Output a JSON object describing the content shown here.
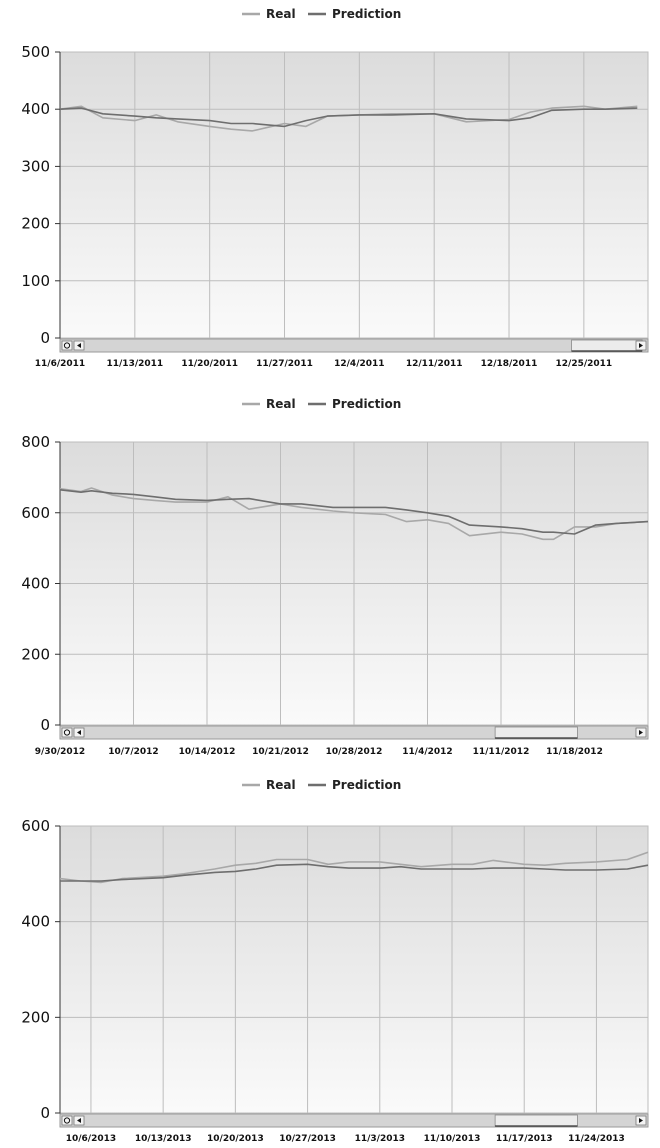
{
  "colors": {
    "real": "#a8a8a8",
    "prediction": "#6e6e6e",
    "plot_top": "#dcdcdc",
    "plot_bottom": "#fafafa",
    "grid": "#bdbdbd",
    "axis": "#333333",
    "scrollbar": "#d4d4d4"
  },
  "icons": {
    "zoom_reset": "magnifier-circle-icon",
    "scroll_left": "arrow-left-icon",
    "scroll_right": "arrow-right-icon"
  },
  "chart_data": [
    {
      "type": "line",
      "legend": [
        "Real",
        "Prediction"
      ],
      "legend_position": "top-center",
      "ylim": [
        0,
        500
      ],
      "yticks": [
        0,
        100,
        200,
        300,
        400,
        500
      ],
      "xticks": [
        "11/6/2011",
        "11/13/2011",
        "11/20/2011",
        "11/27/2011",
        "12/4/2011",
        "12/11/2011",
        "12/18/2011",
        "12/25/2011"
      ],
      "xlim": [
        "11/6/2011",
        "12/31/2011"
      ],
      "grid": true,
      "scroll_thumb": [
        0.87,
        0.99
      ],
      "series": [
        {
          "name": "Real",
          "points": [
            [
              "11/6/2011",
              400
            ],
            [
              "11/8/2011",
              405
            ],
            [
              "11/10/2011",
              385
            ],
            [
              "11/13/2011",
              380
            ],
            [
              "11/15/2011",
              390
            ],
            [
              "11/17/2011",
              378
            ],
            [
              "11/20/2011",
              370
            ],
            [
              "11/22/2011",
              365
            ],
            [
              "11/24/2011",
              362
            ],
            [
              "11/27/2011",
              375
            ],
            [
              "11/29/2011",
              370
            ],
            [
              "12/1/2011",
              388
            ],
            [
              "12/4/2011",
              390
            ],
            [
              "12/7/2011",
              392
            ],
            [
              "12/11/2011",
              392
            ],
            [
              "12/14/2011",
              378
            ],
            [
              "12/18/2011",
              382
            ],
            [
              "12/20/2011",
              395
            ],
            [
              "12/22/2011",
              402
            ],
            [
              "12/25/2011",
              405
            ],
            [
              "12/27/2011",
              400
            ],
            [
              "12/30/2011",
              405
            ]
          ]
        },
        {
          "name": "Prediction",
          "points": [
            [
              "11/6/2011",
              400
            ],
            [
              "11/8/2011",
              402
            ],
            [
              "11/10/2011",
              392
            ],
            [
              "11/13/2011",
              388
            ],
            [
              "11/15/2011",
              385
            ],
            [
              "11/17/2011",
              383
            ],
            [
              "11/20/2011",
              380
            ],
            [
              "11/22/2011",
              375
            ],
            [
              "11/24/2011",
              375
            ],
            [
              "11/27/2011",
              370
            ],
            [
              "11/29/2011",
              380
            ],
            [
              "12/1/2011",
              388
            ],
            [
              "12/4/2011",
              390
            ],
            [
              "12/7/2011",
              390
            ],
            [
              "12/11/2011",
              392
            ],
            [
              "12/14/2011",
              383
            ],
            [
              "12/18/2011",
              380
            ],
            [
              "12/20/2011",
              385
            ],
            [
              "12/22/2011",
              398
            ],
            [
              "12/25/2011",
              400
            ],
            [
              "12/27/2011",
              400
            ],
            [
              "12/30/2011",
              402
            ]
          ]
        }
      ]
    },
    {
      "type": "line",
      "legend": [
        "Real",
        "Prediction"
      ],
      "legend_position": "top-center",
      "ylim": [
        0,
        800
      ],
      "yticks": [
        0,
        200,
        400,
        600,
        800
      ],
      "xticks": [
        "9/30/2012",
        "10/7/2012",
        "10/14/2012",
        "10/21/2012",
        "10/28/2012",
        "11/4/2012",
        "11/11/2012",
        "11/18/2012"
      ],
      "xlim": [
        "9/30/2012",
        "11/25/2012"
      ],
      "grid": true,
      "scroll_thumb": [
        0.74,
        0.88
      ],
      "series": [
        {
          "name": "Real",
          "points": [
            [
              "9/30/2012",
              668
            ],
            [
              "10/2/2012",
              660
            ],
            [
              "10/3/2012",
              670
            ],
            [
              "10/5/2012",
              650
            ],
            [
              "10/7/2012",
              640
            ],
            [
              "10/9/2012",
              635
            ],
            [
              "10/11/2012",
              630
            ],
            [
              "10/14/2012",
              630
            ],
            [
              "10/16/2012",
              645
            ],
            [
              "10/18/2012",
              610
            ],
            [
              "10/21/2012",
              625
            ],
            [
              "10/23/2012",
              615
            ],
            [
              "10/26/2012",
              605
            ],
            [
              "10/28/2012",
              600
            ],
            [
              "10/31/2012",
              595
            ],
            [
              "11/2/2012",
              575
            ],
            [
              "11/4/2012",
              580
            ],
            [
              "11/6/2012",
              570
            ],
            [
              "11/8/2012",
              535
            ],
            [
              "11/11/2012",
              545
            ],
            [
              "11/13/2012",
              540
            ],
            [
              "11/15/2012",
              525
            ],
            [
              "11/16/2012",
              525
            ],
            [
              "11/18/2012",
              560
            ],
            [
              "11/20/2012",
              560
            ],
            [
              "11/22/2012",
              570
            ],
            [
              "11/25/2012",
              575
            ]
          ]
        },
        {
          "name": "Prediction",
          "points": [
            [
              "9/30/2012",
              665
            ],
            [
              "10/2/2012",
              658
            ],
            [
              "10/3/2012",
              662
            ],
            [
              "10/5/2012",
              655
            ],
            [
              "10/7/2012",
              652
            ],
            [
              "10/9/2012",
              645
            ],
            [
              "10/11/2012",
              638
            ],
            [
              "10/14/2012",
              635
            ],
            [
              "10/16/2012",
              638
            ],
            [
              "10/18/2012",
              640
            ],
            [
              "10/21/2012",
              625
            ],
            [
              "10/23/2012",
              625
            ],
            [
              "10/26/2012",
              615
            ],
            [
              "10/28/2012",
              615
            ],
            [
              "10/31/2012",
              615
            ],
            [
              "11/2/2012",
              608
            ],
            [
              "11/4/2012",
              600
            ],
            [
              "11/6/2012",
              590
            ],
            [
              "11/8/2012",
              565
            ],
            [
              "11/11/2012",
              560
            ],
            [
              "11/13/2012",
              555
            ],
            [
              "11/15/2012",
              545
            ],
            [
              "11/16/2012",
              545
            ],
            [
              "11/18/2012",
              540
            ],
            [
              "11/20/2012",
              565
            ],
            [
              "11/22/2012",
              570
            ],
            [
              "11/25/2012",
              575
            ]
          ]
        }
      ]
    },
    {
      "type": "line",
      "legend": [
        "Real",
        "Prediction"
      ],
      "legend_position": "top-center",
      "ylim": [
        0,
        600
      ],
      "yticks": [
        0,
        200,
        400,
        600
      ],
      "xticks": [
        "10/6/2013",
        "10/13/2013",
        "10/20/2013",
        "10/27/2013",
        "11/3/2013",
        "11/10/2013",
        "11/17/2013",
        "11/24/2013"
      ],
      "xlim": [
        "10/3/2013",
        "11/29/2013"
      ],
      "grid": true,
      "scroll_thumb": [
        0.74,
        0.88
      ],
      "series": [
        {
          "name": "Real",
          "points": [
            [
              "10/3/2013",
              490
            ],
            [
              "10/5/2013",
              485
            ],
            [
              "10/7/2013",
              482
            ],
            [
              "10/9/2013",
              490
            ],
            [
              "10/13/2013",
              495
            ],
            [
              "10/15/2013",
              500
            ],
            [
              "10/18/2013",
              510
            ],
            [
              "10/20/2013",
              518
            ],
            [
              "10/22/2013",
              522
            ],
            [
              "10/24/2013",
              530
            ],
            [
              "10/27/2013",
              530
            ],
            [
              "10/29/2013",
              520
            ],
            [
              "10/31/2013",
              525
            ],
            [
              "11/3/2013",
              525
            ],
            [
              "11/5/2013",
              520
            ],
            [
              "11/7/2013",
              515
            ],
            [
              "11/10/2013",
              520
            ],
            [
              "11/12/2013",
              520
            ],
            [
              "11/14/2013",
              528
            ],
            [
              "11/17/2013",
              520
            ],
            [
              "11/19/2013",
              518
            ],
            [
              "11/21/2013",
              522
            ],
            [
              "11/24/2013",
              525
            ],
            [
              "11/27/2013",
              530
            ],
            [
              "11/29/2013",
              545
            ]
          ]
        },
        {
          "name": "Prediction",
          "points": [
            [
              "10/3/2013",
              485
            ],
            [
              "10/5/2013",
              485
            ],
            [
              "10/7/2013",
              485
            ],
            [
              "10/9/2013",
              488
            ],
            [
              "10/13/2013",
              492
            ],
            [
              "10/15/2013",
              497
            ],
            [
              "10/18/2013",
              503
            ],
            [
              "10/20/2013",
              505
            ],
            [
              "10/22/2013",
              510
            ],
            [
              "10/24/2013",
              518
            ],
            [
              "10/27/2013",
              520
            ],
            [
              "10/29/2013",
              515
            ],
            [
              "10/31/2013",
              512
            ],
            [
              "11/3/2013",
              512
            ],
            [
              "11/5/2013",
              515
            ],
            [
              "11/7/2013",
              510
            ],
            [
              "11/10/2013",
              510
            ],
            [
              "11/12/2013",
              510
            ],
            [
              "11/14/2013",
              512
            ],
            [
              "11/17/2013",
              512
            ],
            [
              "11/19/2013",
              510
            ],
            [
              "11/21/2013",
              508
            ],
            [
              "11/24/2013",
              508
            ],
            [
              "11/27/2013",
              510
            ],
            [
              "11/29/2013",
              518
            ]
          ]
        }
      ]
    }
  ]
}
